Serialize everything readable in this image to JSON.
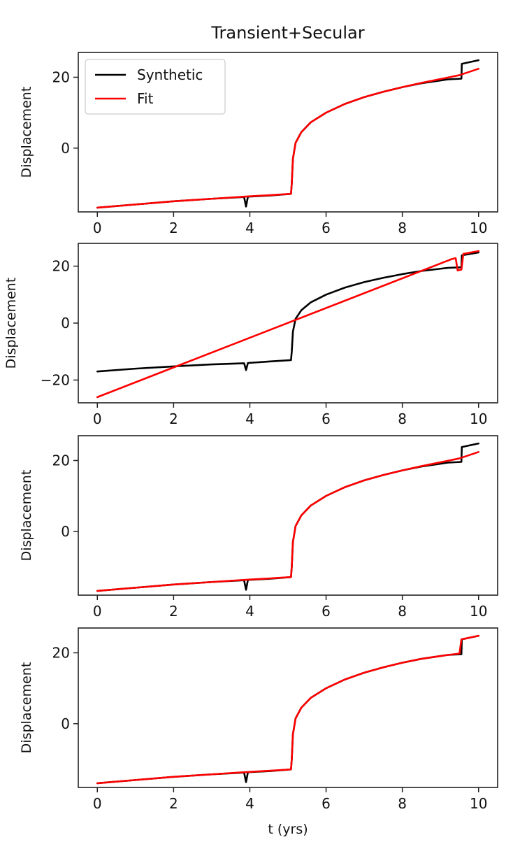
{
  "chart_data": [
    {
      "type": "line",
      "title": "Transient+Secular",
      "xlabel": "",
      "ylabel": "Displacement",
      "xlim": [
        -0.5,
        10.5
      ],
      "ylim": [
        -18,
        27
      ],
      "xticks": [
        0,
        2,
        4,
        6,
        8,
        10
      ],
      "yticks": [
        0,
        20
      ],
      "legend": {
        "placement": "top-left",
        "entries": [
          "Synthetic",
          "Fit"
        ]
      },
      "series": [
        {
          "name": "Synthetic",
          "color": "#000000",
          "points": [
            [
              0,
              -16.8
            ],
            [
              1,
              -15.9
            ],
            [
              2,
              -15.0
            ],
            [
              3,
              -14.3
            ],
            [
              3.85,
              -13.8
            ],
            [
              3.9,
              -16.5
            ],
            [
              3.95,
              -13.7
            ],
            [
              4.5,
              -13.4
            ],
            [
              5.08,
              -12.9
            ],
            [
              5.1,
              -10.0
            ],
            [
              5.13,
              -3.0
            ],
            [
              5.2,
              1.5
            ],
            [
              5.35,
              4.5
            ],
            [
              5.6,
              7.3
            ],
            [
              6,
              10.0
            ],
            [
              6.5,
              12.5
            ],
            [
              7,
              14.4
            ],
            [
              7.5,
              15.9
            ],
            [
              8,
              17.2
            ],
            [
              8.5,
              18.3
            ],
            [
              9,
              19.1
            ],
            [
              9.2,
              19.4
            ],
            [
              9.55,
              19.6
            ],
            [
              9.56,
              23.8
            ],
            [
              10,
              24.8
            ]
          ]
        },
        {
          "name": "Fit",
          "color": "#ff0000",
          "points": [
            [
              0,
              -16.8
            ],
            [
              1,
              -15.9
            ],
            [
              2,
              -15.0
            ],
            [
              3,
              -14.3
            ],
            [
              4,
              -13.6
            ],
            [
              4.5,
              -13.3
            ],
            [
              5.08,
              -12.9
            ],
            [
              5.1,
              -10.0
            ],
            [
              5.13,
              -3.0
            ],
            [
              5.2,
              1.5
            ],
            [
              5.35,
              4.5
            ],
            [
              5.6,
              7.3
            ],
            [
              6,
              10.0
            ],
            [
              6.5,
              12.5
            ],
            [
              7,
              14.4
            ],
            [
              7.5,
              15.9
            ],
            [
              8,
              17.2
            ],
            [
              8.5,
              18.4
            ],
            [
              9,
              19.5
            ],
            [
              9.5,
              20.6
            ],
            [
              10,
              22.4
            ]
          ]
        }
      ]
    },
    {
      "type": "line",
      "title": "",
      "xlabel": "",
      "ylabel": "Displacement",
      "xlim": [
        -0.5,
        10.5
      ],
      "ylim": [
        -28,
        28
      ],
      "xticks": [
        0,
        2,
        4,
        6,
        8,
        10
      ],
      "yticks": [
        -20,
        0,
        20
      ],
      "series": [
        {
          "name": "",
          "color": "#000000",
          "points": [
            [
              0,
              -17.0
            ],
            [
              1,
              -16.0
            ],
            [
              2,
              -15.2
            ],
            [
              3,
              -14.5
            ],
            [
              3.85,
              -14.1
            ],
            [
              3.9,
              -16.5
            ],
            [
              3.95,
              -14.0
            ],
            [
              4.5,
              -13.5
            ],
            [
              5.08,
              -13.0
            ],
            [
              5.1,
              -10.0
            ],
            [
              5.13,
              -3.0
            ],
            [
              5.2,
              1.5
            ],
            [
              5.35,
              4.5
            ],
            [
              5.6,
              7.3
            ],
            [
              6,
              10.0
            ],
            [
              6.5,
              12.5
            ],
            [
              7,
              14.4
            ],
            [
              7.5,
              15.9
            ],
            [
              8,
              17.2
            ],
            [
              8.5,
              18.3
            ],
            [
              9,
              19.1
            ],
            [
              9.2,
              19.4
            ],
            [
              9.55,
              19.6
            ],
            [
              9.56,
              23.8
            ],
            [
              10,
              24.8
            ]
          ]
        },
        {
          "name": "",
          "color": "#ff0000",
          "points": [
            [
              0,
              -26.0
            ],
            [
              9.3,
              22.5
            ],
            [
              9.4,
              22.8
            ],
            [
              9.45,
              18.5
            ],
            [
              9.55,
              18.8
            ],
            [
              9.6,
              24.3
            ],
            [
              10,
              25.3
            ]
          ]
        }
      ]
    },
    {
      "type": "line",
      "title": "",
      "xlabel": "",
      "ylabel": "Displacement",
      "xlim": [
        -0.5,
        10.5
      ],
      "ylim": [
        -18,
        27
      ],
      "xticks": [
        0,
        2,
        4,
        6,
        8,
        10
      ],
      "yticks": [
        0,
        20
      ],
      "series": [
        {
          "name": "",
          "color": "#000000",
          "points": [
            [
              0,
              -16.8
            ],
            [
              1,
              -15.9
            ],
            [
              2,
              -15.0
            ],
            [
              3,
              -14.3
            ],
            [
              3.85,
              -13.8
            ],
            [
              3.9,
              -16.5
            ],
            [
              3.95,
              -13.7
            ],
            [
              4.5,
              -13.4
            ],
            [
              5.08,
              -12.9
            ],
            [
              5.1,
              -10.0
            ],
            [
              5.13,
              -3.0
            ],
            [
              5.2,
              1.5
            ],
            [
              5.35,
              4.5
            ],
            [
              5.6,
              7.3
            ],
            [
              6,
              10.0
            ],
            [
              6.5,
              12.5
            ],
            [
              7,
              14.4
            ],
            [
              7.5,
              15.9
            ],
            [
              8,
              17.2
            ],
            [
              8.5,
              18.3
            ],
            [
              9,
              19.1
            ],
            [
              9.2,
              19.4
            ],
            [
              9.55,
              19.6
            ],
            [
              9.56,
              23.8
            ],
            [
              10,
              24.8
            ]
          ]
        },
        {
          "name": "",
          "color": "#ff0000",
          "points": [
            [
              0,
              -16.8
            ],
            [
              1,
              -15.9
            ],
            [
              2,
              -15.0
            ],
            [
              3,
              -14.3
            ],
            [
              4,
              -13.6
            ],
            [
              4.5,
              -13.3
            ],
            [
              5.08,
              -12.9
            ],
            [
              5.1,
              -10.0
            ],
            [
              5.13,
              -3.0
            ],
            [
              5.2,
              1.5
            ],
            [
              5.35,
              4.5
            ],
            [
              5.6,
              7.3
            ],
            [
              6,
              10.0
            ],
            [
              6.5,
              12.5
            ],
            [
              7,
              14.4
            ],
            [
              7.5,
              15.9
            ],
            [
              8,
              17.2
            ],
            [
              8.5,
              18.4
            ],
            [
              9,
              19.5
            ],
            [
              9.5,
              20.6
            ],
            [
              10,
              22.4
            ]
          ]
        }
      ]
    },
    {
      "type": "line",
      "title": "",
      "xlabel": "t (yrs)",
      "ylabel": "Displacement",
      "xlim": [
        -0.5,
        10.5
      ],
      "ylim": [
        -18,
        27
      ],
      "xticks": [
        0,
        2,
        4,
        6,
        8,
        10
      ],
      "yticks": [
        0,
        20
      ],
      "series": [
        {
          "name": "",
          "color": "#000000",
          "points": [
            [
              0,
              -16.8
            ],
            [
              1,
              -15.9
            ],
            [
              2,
              -15.0
            ],
            [
              3,
              -14.3
            ],
            [
              3.85,
              -13.8
            ],
            [
              3.9,
              -16.5
            ],
            [
              3.95,
              -13.7
            ],
            [
              4.5,
              -13.4
            ],
            [
              5.08,
              -12.9
            ],
            [
              5.1,
              -10.0
            ],
            [
              5.13,
              -3.0
            ],
            [
              5.2,
              1.5
            ],
            [
              5.35,
              4.5
            ],
            [
              5.6,
              7.3
            ],
            [
              6,
              10.0
            ],
            [
              6.5,
              12.5
            ],
            [
              7,
              14.4
            ],
            [
              7.5,
              15.9
            ],
            [
              8,
              17.2
            ],
            [
              8.5,
              18.3
            ],
            [
              9,
              19.1
            ],
            [
              9.2,
              19.4
            ],
            [
              9.55,
              19.6
            ],
            [
              9.56,
              23.8
            ],
            [
              10,
              24.8
            ]
          ]
        },
        {
          "name": "",
          "color": "#ff0000",
          "points": [
            [
              0,
              -16.8
            ],
            [
              1,
              -15.9
            ],
            [
              2,
              -15.0
            ],
            [
              3,
              -14.3
            ],
            [
              4,
              -13.6
            ],
            [
              4.5,
              -13.3
            ],
            [
              5.08,
              -12.9
            ],
            [
              5.1,
              -10.0
            ],
            [
              5.13,
              -3.0
            ],
            [
              5.2,
              1.5
            ],
            [
              5.35,
              4.5
            ],
            [
              5.6,
              7.3
            ],
            [
              6,
              10.0
            ],
            [
              6.5,
              12.5
            ],
            [
              7,
              14.4
            ],
            [
              7.5,
              15.9
            ],
            [
              8,
              17.2
            ],
            [
              8.5,
              18.3
            ],
            [
              9,
              19.1
            ],
            [
              9.2,
              19.4
            ],
            [
              9.5,
              19.8
            ],
            [
              9.55,
              23.8
            ],
            [
              10,
              24.8
            ]
          ]
        }
      ]
    }
  ]
}
